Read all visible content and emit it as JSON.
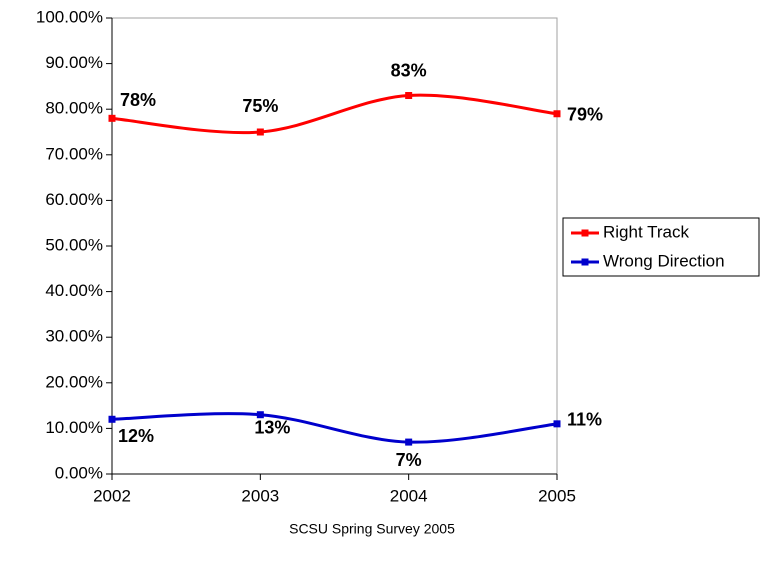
{
  "chart_data": {
    "type": "line",
    "categories": [
      "2002",
      "2003",
      "2004",
      "2005"
    ],
    "series": [
      {
        "name": "Right Track",
        "color": "#ff0000",
        "values": [
          78,
          75,
          83,
          79
        ],
        "value_labels": [
          "78%",
          "75%",
          "83%",
          "79%"
        ]
      },
      {
        "name": "Wrong Direction",
        "color": "#0000cc",
        "values": [
          12,
          13,
          7,
          11
        ],
        "value_labels": [
          "12%",
          "13%",
          "7%",
          "11%"
        ]
      }
    ],
    "ylim": [
      0,
      100
    ],
    "yticks": [
      {
        "value": 0,
        "label": "0.00%"
      },
      {
        "value": 10,
        "label": "10.00%"
      },
      {
        "value": 20,
        "label": "20.00%"
      },
      {
        "value": 30,
        "label": "30.00%"
      },
      {
        "value": 40,
        "label": "40.00%"
      },
      {
        "value": 50,
        "label": "50.00%"
      },
      {
        "value": 60,
        "label": "60.00%"
      },
      {
        "value": 70,
        "label": "70.00%"
      },
      {
        "value": 80,
        "label": "80.00%"
      },
      {
        "value": 90,
        "label": "90.00%"
      },
      {
        "value": 100,
        "label": "100.00%"
      }
    ],
    "xlabel": "SCSU Spring Survey 2005",
    "smooth": true,
    "legend": "right"
  }
}
